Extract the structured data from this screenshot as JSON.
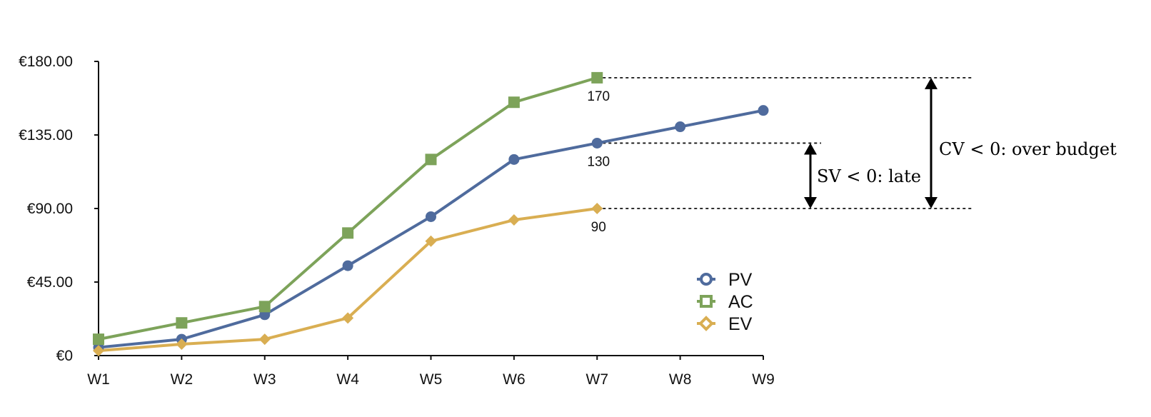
{
  "chart_data": {
    "type": "line",
    "title": "",
    "xlabel": "",
    "ylabel": "",
    "categories": [
      "W1",
      "W2",
      "W3",
      "W4",
      "W5",
      "W6",
      "W7",
      "W8",
      "W9"
    ],
    "ylim": [
      0,
      180
    ],
    "y_ticks": [
      0,
      45,
      90,
      135,
      180
    ],
    "y_tick_labels": [
      "€0",
      "€45.00",
      "€90.00",
      "€135.00",
      "€180.00"
    ],
    "grid": false,
    "legend_position": "right",
    "series": [
      {
        "name": "PV",
        "marker": "circle",
        "color": "#4F6B9D",
        "values": [
          5,
          10,
          25,
          55,
          85,
          120,
          130,
          140,
          150
        ]
      },
      {
        "name": "AC",
        "marker": "square",
        "color": "#7DA35A",
        "values": [
          10,
          20,
          30,
          75,
          120,
          155,
          170,
          null,
          null
        ]
      },
      {
        "name": "EV",
        "marker": "diamond",
        "color": "#D9AE52",
        "values": [
          3,
          7,
          10,
          23,
          70,
          83,
          90,
          null,
          null
        ]
      }
    ],
    "data_labels": [
      {
        "category": "W7",
        "value": 170,
        "text": "170"
      },
      {
        "category": "W7",
        "value": 130,
        "text": "130"
      },
      {
        "category": "W7",
        "value": 90,
        "text": "90"
      }
    ],
    "annotations": [
      {
        "text": "SV < 0: late",
        "from": 130,
        "to": 90
      },
      {
        "text": "CV < 0: over budget",
        "from": 170,
        "to": 90
      }
    ]
  }
}
